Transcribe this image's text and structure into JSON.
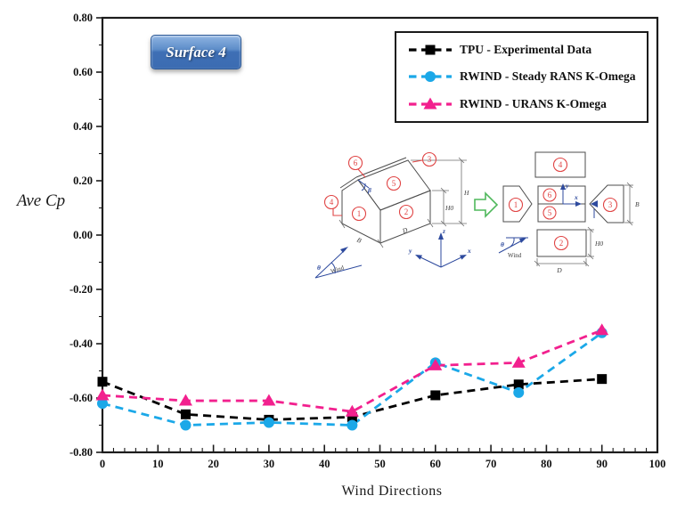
{
  "figure": {
    "surface_label": "Surface 4",
    "x_axis_title": "Wind Directions",
    "y_axis_title": "Ave Cp"
  },
  "legend": {
    "items": [
      {
        "label": "TPU - Experimental Data",
        "color": "#000000",
        "marker": "square"
      },
      {
        "label": "RWIND - Steady RANS K-Omega",
        "color": "#1ba8e8",
        "marker": "circle"
      },
      {
        "label": "RWIND - URANS K-Omega",
        "color": "#f2208e",
        "marker": "triangle"
      }
    ]
  },
  "chart_data": {
    "type": "line",
    "x": [
      0,
      15,
      30,
      45,
      60,
      75,
      90
    ],
    "series": [
      {
        "name": "TPU - Experimental Data",
        "marker": "square",
        "color": "#000000",
        "values": [
          -0.54,
          -0.66,
          -0.68,
          -0.67,
          -0.59,
          -0.55,
          -0.53
        ]
      },
      {
        "name": "RWIND - Steady RANS K-Omega",
        "marker": "circle",
        "color": "#1ba8e8",
        "values": [
          -0.62,
          -0.7,
          -0.69,
          -0.7,
          -0.47,
          -0.58,
          -0.36
        ]
      },
      {
        "name": "RWIND - URANS K-Omega",
        "marker": "triangle",
        "color": "#f2208e",
        "values": [
          -0.59,
          -0.61,
          -0.61,
          -0.65,
          -0.48,
          -0.47,
          -0.35
        ]
      }
    ],
    "title": "Surface 4",
    "xlabel": "Wind Directions",
    "ylabel": "Ave Cp",
    "xlim": [
      0,
      100
    ],
    "ylim": [
      -0.8,
      0.8
    ],
    "xticks": [
      0,
      10,
      20,
      30,
      40,
      50,
      60,
      70,
      80,
      90,
      100
    ],
    "yticks": [
      "0.80",
      "0.60",
      "0.40",
      "0.20",
      "0.00",
      "-0.20",
      "-0.40",
      "-0.60",
      "-0.80"
    ],
    "x_minor_step": 2,
    "y_minor_step": 0.1,
    "grid": false,
    "line_style": "dashed",
    "legend_position": "top-right"
  },
  "inset": {
    "surface_numbers": [
      "1",
      "2",
      "3",
      "4",
      "5",
      "6"
    ],
    "labels": {
      "B": "B",
      "D": "D",
      "H0": "H0",
      "H": "H",
      "beta": "β",
      "theta": "θ",
      "wind": "Wind",
      "x": "x",
      "y": "y",
      "z": "z"
    }
  }
}
